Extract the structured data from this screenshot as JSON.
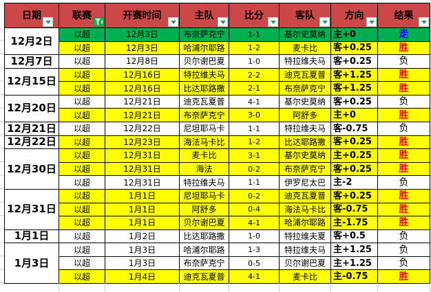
{
  "table": {
    "headers": [
      {
        "name": "date",
        "label": "日期",
        "filter": "dropdown"
      },
      {
        "name": "league",
        "label": "联赛",
        "filter": "funnel"
      },
      {
        "name": "time",
        "label": "开赛时间",
        "filter": "dropdown"
      },
      {
        "name": "home",
        "label": "主队",
        "filter": "dropdown"
      },
      {
        "name": "score",
        "label": "比分",
        "filter": "dropdown"
      },
      {
        "name": "away",
        "label": "客队",
        "filter": "dropdown"
      },
      {
        "name": "direction",
        "label": "方向",
        "filter": "dropdown"
      },
      {
        "name": "result",
        "label": "结果",
        "filter": "dropdown"
      }
    ],
    "date_groups": [
      {
        "label": "12月2日",
        "start": 1,
        "end": 2
      },
      {
        "label": "12月7日",
        "start": 3,
        "end": 3
      },
      {
        "label": "12月15日",
        "start": 4,
        "end": 5
      },
      {
        "label": "12月20日",
        "start": 6,
        "end": 7
      },
      {
        "label": "12月21日",
        "start": 8,
        "end": 8
      },
      {
        "label": "12月22日",
        "start": 9,
        "end": 9
      },
      {
        "label": "12月30日",
        "start": 10,
        "end": 12
      },
      {
        "label": "12月31日",
        "start": 13,
        "end": 15
      },
      {
        "label": "1月1日",
        "start": 16,
        "end": 16
      },
      {
        "label": "1月3日",
        "start": 17,
        "end": 19
      }
    ],
    "rows": [
      {
        "league": "以超",
        "time": "12月3日",
        "home": "布奈萨克宁",
        "score": "1-1",
        "away": "基尔史莫纳",
        "direction": "主+0",
        "result": "走",
        "result_color": "draw",
        "bg": "green"
      },
      {
        "league": "以超",
        "time": "12月3日",
        "home": "哈浦尔耶路",
        "score": "1-2",
        "away": "麦卡比",
        "direction": "客+0.25",
        "result": "胜",
        "result_color": "win",
        "bg": "yellow"
      },
      {
        "league": "以超",
        "time": "12月8日",
        "home": "贝尔谢巴夏",
        "score": "1-0",
        "away": "特拉维夫马",
        "direction": "客+0.25",
        "result": "负",
        "result_color": "loss",
        "bg": "white"
      },
      {
        "league": "以超",
        "time": "12月16日",
        "home": "特拉维夫马",
        "score": "2-2",
        "away": "迪克瓦夏普",
        "direction": "客+1.25",
        "result": "胜",
        "result_color": "win",
        "bg": "yellow"
      },
      {
        "league": "以超",
        "time": "12月16日",
        "home": "比达耶路撒",
        "score": "2-1",
        "away": "布奈萨克宁",
        "direction": "客+1.25",
        "result": "胜",
        "result_color": "win",
        "bg": "yellow"
      },
      {
        "league": "以超",
        "time": "12月21日",
        "home": "迪克瓦夏普",
        "score": "4-1",
        "away": "基尔史莫纳",
        "direction": "客+0.25",
        "result": "负",
        "result_color": "loss",
        "bg": "white"
      },
      {
        "league": "以超",
        "time": "12月21日",
        "home": "布奈萨克宁",
        "score": "3-0",
        "away": "阿舒多",
        "direction": "主+0",
        "result": "胜",
        "result_color": "win",
        "bg": "yellow"
      },
      {
        "league": "以超",
        "time": "12月22日",
        "home": "尼坦耶马卡",
        "score": "1-1",
        "away": "特拉维夫马",
        "direction": "客-0.75",
        "result": "负",
        "result_color": "loss",
        "bg": "white"
      },
      {
        "league": "以超",
        "time": "12月23日",
        "home": "海法马卡比",
        "score": "1-2",
        "away": "比达耶路撒",
        "direction": "客+0.25",
        "result": "胜",
        "result_color": "win",
        "bg": "yellow"
      },
      {
        "league": "以超",
        "time": "12月31日",
        "home": "麦卡比",
        "score": "3-1",
        "away": "基尔史莫纳",
        "direction": "主+0.25",
        "result": "胜",
        "result_color": "win",
        "bg": "yellow"
      },
      {
        "league": "以超",
        "time": "12月31日",
        "home": "海法",
        "score": "0-2",
        "away": "布奈萨克宁",
        "direction": "客+0.25",
        "result": "胜",
        "result_color": "win",
        "bg": "yellow"
      },
      {
        "league": "以超",
        "time": "12月31日",
        "home": "特拉维夫马",
        "score": "1-1",
        "away": "伊罗尼太巴",
        "direction": "主-2",
        "result": "负",
        "result_color": "loss",
        "bg": "white"
      },
      {
        "league": "以超",
        "time": "1月1日",
        "home": "尼坦耶马卡",
        "score": "0-2",
        "away": "迪克瓦夏普",
        "direction": "客+0.25",
        "result": "胜",
        "result_color": "win",
        "bg": "yellow"
      },
      {
        "league": "以超",
        "time": "1月1日",
        "home": "阿舒多",
        "score": "0-4",
        "away": "海法马卡比",
        "direction": "客-0.75",
        "result": "胜",
        "result_color": "win",
        "bg": "yellow"
      },
      {
        "league": "以超",
        "time": "1月1日",
        "home": "贝尔谢巴夏",
        "score": "4-1",
        "away": "哈浦尔耶路",
        "direction": "主-1.75",
        "result": "胜",
        "result_color": "win",
        "bg": "yellow"
      },
      {
        "league": "以超",
        "time": "1月2日",
        "home": "比达耶路撒",
        "score": "1-0",
        "away": "特拉维夫夏",
        "direction": "客+0.5",
        "result": "负",
        "result_color": "loss",
        "bg": "white"
      },
      {
        "league": "以超",
        "time": "1月3日",
        "home": "哈浦尔耶路",
        "score": "1-3",
        "away": "特拉维夫马",
        "direction": "主+1.25",
        "result": "负",
        "result_color": "loss",
        "bg": "white"
      },
      {
        "league": "以超",
        "time": "1月3日",
        "home": "布奈萨克宁",
        "score": "0-5",
        "away": "贝尔谢巴夏",
        "direction": "主+1.25",
        "result": "负",
        "result_color": "loss",
        "bg": "white"
      },
      {
        "league": "以超",
        "time": "1月4日",
        "home": "迪克瓦夏普",
        "score": "4-1",
        "away": "麦卡比",
        "direction": "主-0.75",
        "result": "胜",
        "result_color": "win",
        "bg": "yellow"
      }
    ]
  },
  "colors": {
    "header_bg": "#cc4748",
    "row_green": "#00b050",
    "row_yellow": "#ffff00",
    "row_white": "#ffffff",
    "result_win": "#ff0000",
    "result_draw": "#0000ff",
    "result_loss": "#000000",
    "filter_funnel_bg": "#21af52",
    "filter_arrow": "#1f9d55"
  }
}
